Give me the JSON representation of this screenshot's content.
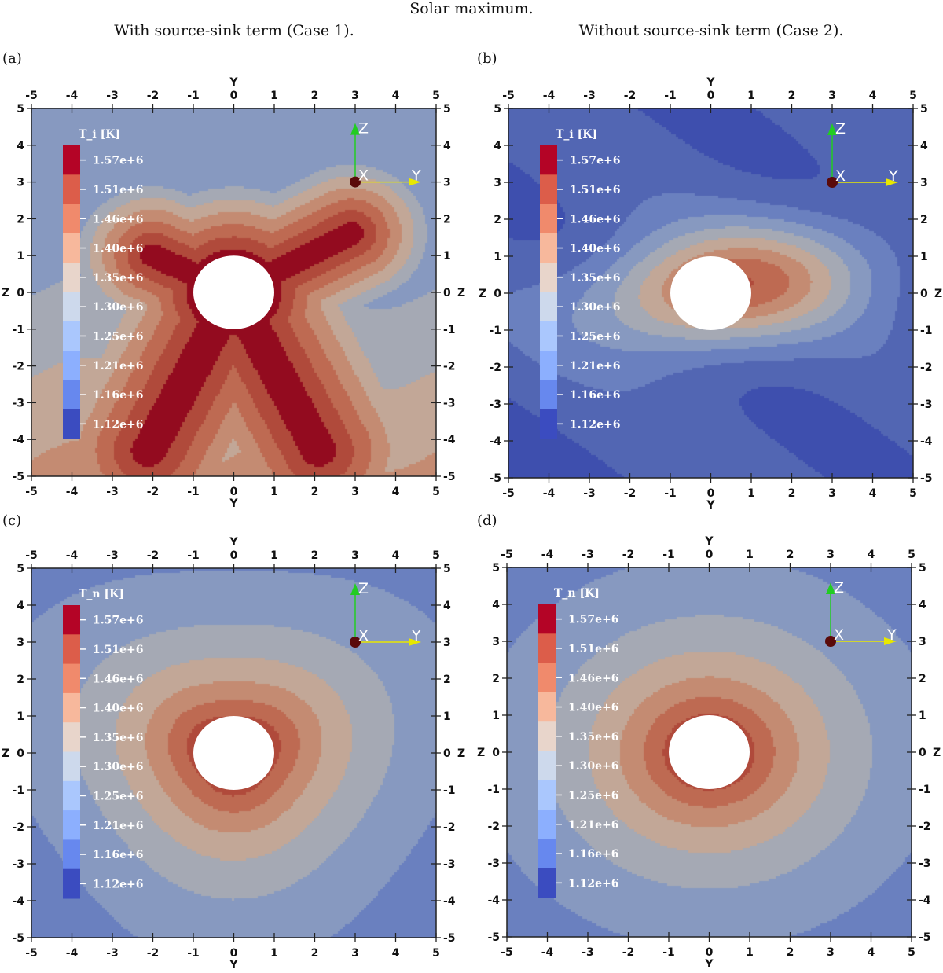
{
  "figure": {
    "title": "Solar maximum.",
    "column_titles": [
      "With source-sink term (Case 1).",
      "Without source-sink term (Case 2)."
    ],
    "panel_letters": [
      "(a)",
      "(b)",
      "(c)",
      "(d)"
    ]
  },
  "chart_data": [
    {
      "type": "heatmap",
      "panel": "(a)",
      "variable_label": "T_i [K]",
      "case": "With source-sink term (Case 1).",
      "xlabel": "Y",
      "ylabel": "Z",
      "xlim": [
        -5,
        5
      ],
      "ylim": [
        -5,
        5
      ],
      "xticks": [
        -5,
        -4,
        -3,
        -2,
        -1,
        0,
        1,
        2,
        3,
        4,
        5
      ],
      "yticks": [
        5,
        4,
        3,
        2,
        1,
        0,
        -1,
        -2,
        -3,
        -4,
        -5
      ],
      "colorbar": [
        "1.57e+6",
        "1.51e+6",
        "1.46e+6",
        "1.40e+6",
        "1.35e+6",
        "1.30e+6",
        "1.25e+6",
        "1.21e+6",
        "1.16e+6",
        "1.12e+6"
      ],
      "pattern": "X-shaped hot region (max ~1.57e+6 K) along diagonals around central body of radius 1; cooler (~1.16e+6–1.21e+6 K) at top"
    },
    {
      "type": "heatmap",
      "panel": "(b)",
      "variable_label": "T_i [K]",
      "case": "Without source-sink term (Case 2).",
      "xlabel": "Y",
      "ylabel": "Z",
      "xlim": [
        -5,
        5
      ],
      "ylim": [
        -5,
        5
      ],
      "xticks": [
        -5,
        -4,
        -3,
        -2,
        -1,
        0,
        1,
        2,
        3,
        4,
        5
      ],
      "yticks": [
        5,
        4,
        3,
        2,
        1,
        0,
        -1,
        -2,
        -3,
        -4,
        -5
      ],
      "colorbar": [
        "1.57e+6",
        "1.51e+6",
        "1.46e+6",
        "1.40e+6",
        "1.35e+6",
        "1.30e+6",
        "1.25e+6",
        "1.21e+6",
        "1.16e+6",
        "1.12e+6"
      ],
      "pattern": "Horizontally elongated warm region (~1.46e+6–1.51e+6 K) around the body, decreasing to ~1.12e+6–1.16e+6 K at top and bottom"
    },
    {
      "type": "heatmap",
      "panel": "(c)",
      "variable_label": "T_n [K]",
      "case": "With source-sink term (Case 1).",
      "xlabel": "Y",
      "ylabel": "Z",
      "xlim": [
        -5,
        5
      ],
      "ylim": [
        -5,
        5
      ],
      "xticks": [
        -5,
        -4,
        -3,
        -2,
        -1,
        0,
        1,
        2,
        3,
        4,
        5
      ],
      "yticks": [
        5,
        4,
        3,
        2,
        1,
        0,
        -1,
        -2,
        -3,
        -4,
        -5
      ],
      "colorbar": [
        "1.57e+6",
        "1.51e+6",
        "1.46e+6",
        "1.40e+6",
        "1.35e+6",
        "1.30e+6",
        "1.25e+6",
        "1.21e+6",
        "1.16e+6",
        "1.12e+6"
      ],
      "pattern": "Concentric rings, ~1.51e+6 K near body decreasing outward to ~1.16e+6 K"
    },
    {
      "type": "heatmap",
      "panel": "(d)",
      "variable_label": "T_n [K]",
      "case": "Without source-sink term (Case 2).",
      "xlabel": "Y",
      "ylabel": "Z",
      "xlim": [
        -5,
        5
      ],
      "ylim": [
        -5,
        5
      ],
      "xticks": [
        -5,
        -4,
        -3,
        -2,
        -1,
        0,
        1,
        2,
        3,
        4,
        5
      ],
      "yticks": [
        5,
        4,
        3,
        2,
        1,
        0,
        -1,
        -2,
        -3,
        -4,
        -5
      ],
      "colorbar": [
        "1.57e+6",
        "1.51e+6",
        "1.46e+6",
        "1.40e+6",
        "1.35e+6",
        "1.30e+6",
        "1.25e+6",
        "1.21e+6",
        "1.16e+6",
        "1.12e+6"
      ],
      "pattern": "Smooth concentric rings, ~1.51e+6 K near body decreasing outward to ~1.16e+6 K"
    }
  ],
  "colors": {
    "colorbar": [
      "#b40426",
      "#dc5d4a",
      "#f08a6c",
      "#f7b89c",
      "#e8d5cb",
      "#cdd9ec",
      "#aac7fd",
      "#8caffe",
      "#6788ee",
      "#3b4cc0"
    ],
    "field": [
      "#3e4fae",
      "#5266b3",
      "#6a80bf",
      "#8799c0",
      "#a5a9b4",
      "#c2a797",
      "#c48b72",
      "#be6a52",
      "#b04a3b",
      "#930b1f"
    ],
    "orientation_z": "#22cc22",
    "orientation_y": "#e8e800",
    "orientation_x": "#5a0a0a"
  },
  "orientation": {
    "x": "X",
    "y": "Y",
    "z": "Z"
  }
}
